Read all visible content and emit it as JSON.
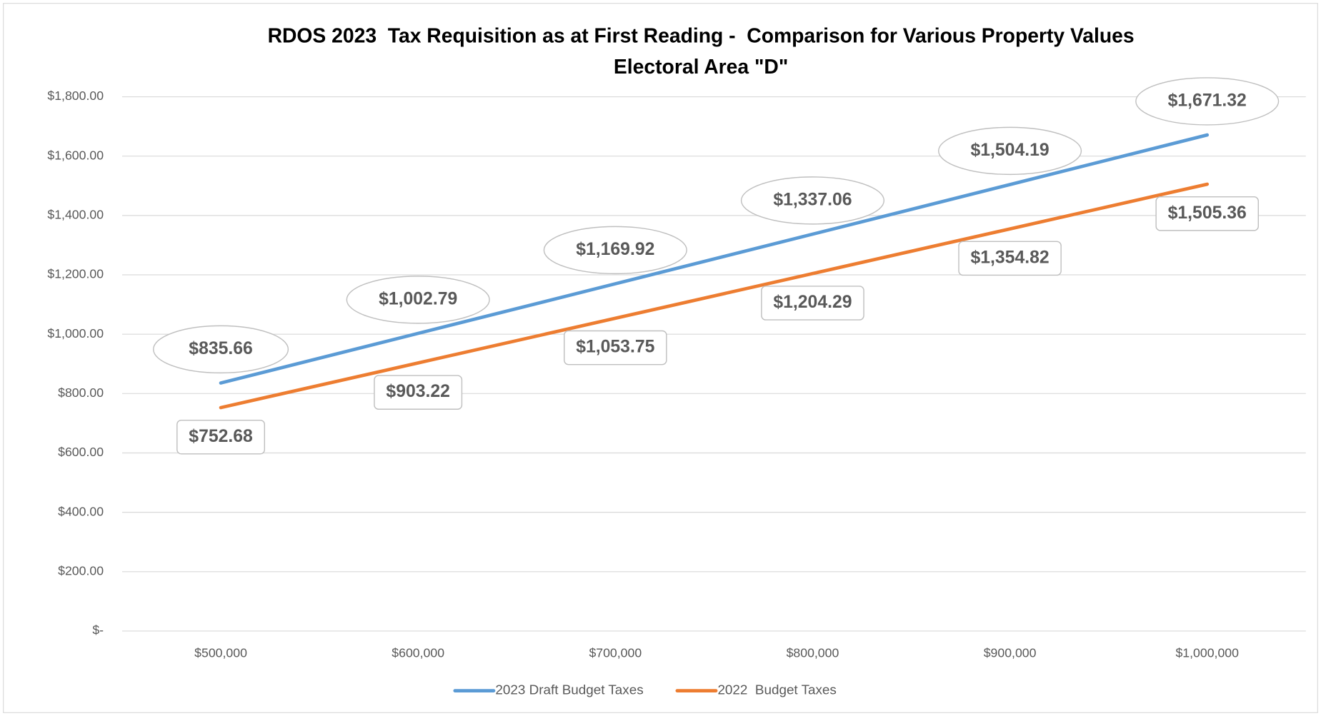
{
  "chart_data": {
    "type": "line",
    "title": "RDOS 2023  Tax Requisition as at First Reading -  Comparison for Various Property Values",
    "subtitle": "Electoral Area \"D\"",
    "categories": [
      "$500,000",
      "$600,000",
      "$700,000",
      "$800,000",
      "$900,000",
      "$1,000,000"
    ],
    "series": [
      {
        "name": "2023 Draft Budget Taxes",
        "color": "#5b9bd5",
        "values": [
          835.66,
          1002.79,
          1169.92,
          1337.06,
          1504.19,
          1671.32
        ],
        "value_labels": [
          "$835.66",
          "$1,002.79",
          "$1,169.92",
          "$1,337.06",
          "$1,504.19",
          "$1,671.32"
        ]
      },
      {
        "name": "2022  Budget Taxes",
        "color": "#ed7d31",
        "values": [
          752.68,
          903.22,
          1053.75,
          1204.29,
          1354.82,
          1505.36
        ],
        "value_labels": [
          "$752.68",
          "$903.22",
          "$1,053.75",
          "$1,204.29",
          "$1,354.82",
          "$1,505.36"
        ]
      }
    ],
    "ylim": [
      0,
      1800
    ],
    "yticks": [
      {
        "value": 0,
        "label": "$-"
      },
      {
        "value": 200,
        "label": "$200.00"
      },
      {
        "value": 400,
        "label": "$400.00"
      },
      {
        "value": 600,
        "label": "$600.00"
      },
      {
        "value": 800,
        "label": "$800.00"
      },
      {
        "value": 1000,
        "label": "$1,000.00"
      },
      {
        "value": 1200,
        "label": "$1,200.00"
      },
      {
        "value": 1400,
        "label": "$1,400.00"
      },
      {
        "value": 1600,
        "label": "$1,600.00"
      },
      {
        "value": 1800,
        "label": "$1,800.00"
      }
    ],
    "grid": true,
    "legend": "bottom"
  }
}
